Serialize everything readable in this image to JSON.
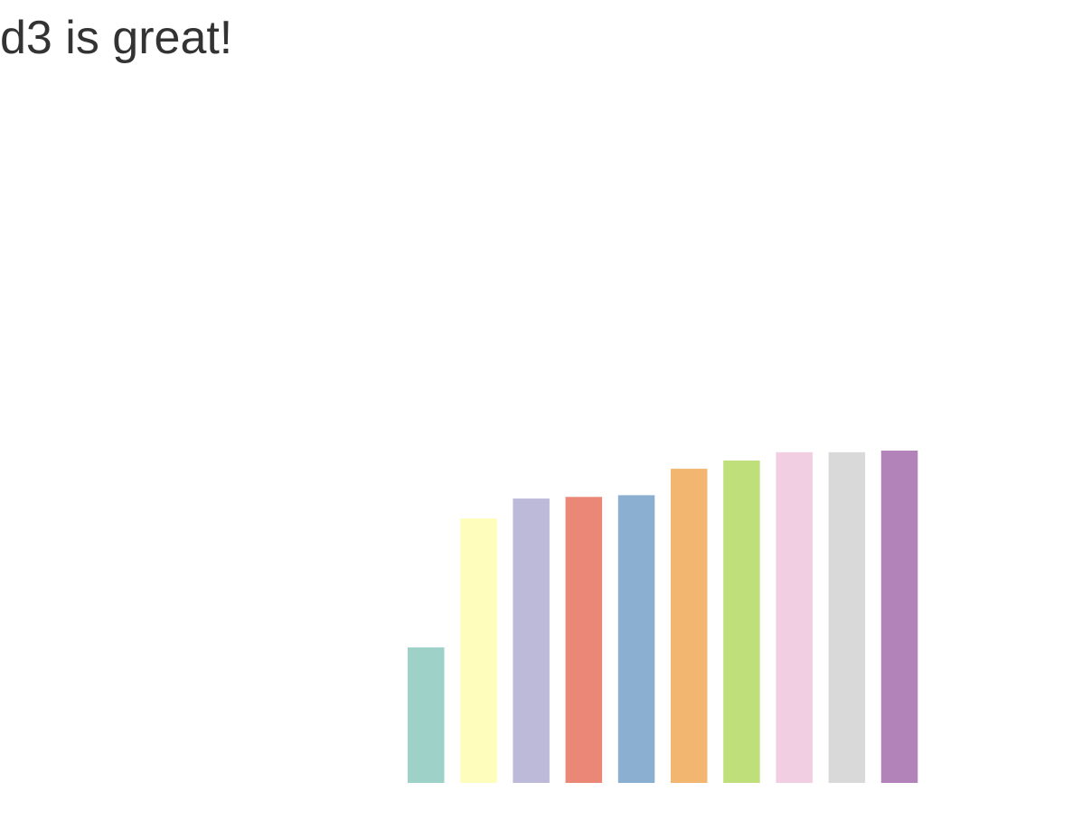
{
  "page": {
    "heading": "d3 is great!"
  },
  "chart_data": {
    "type": "bar",
    "title": "",
    "xlabel": "",
    "ylabel": "",
    "categories": [
      "",
      "",
      "",
      "",
      "",
      "",
      "",
      "",
      "",
      ""
    ],
    "values": [
      41,
      80,
      86,
      86.5,
      87,
      95,
      97.5,
      100,
      100,
      100.5
    ],
    "ylim": [
      0,
      100.5
    ],
    "colors": [
      "#9ed1c8",
      "#fffdbc",
      "#bdbad9",
      "#ea8776",
      "#8aafd0",
      "#f2b671",
      "#bedf79",
      "#f2cee2",
      "#d9d9d9",
      "#b283b9"
    ],
    "axes_visible": false,
    "grid": false,
    "legend": "none"
  }
}
